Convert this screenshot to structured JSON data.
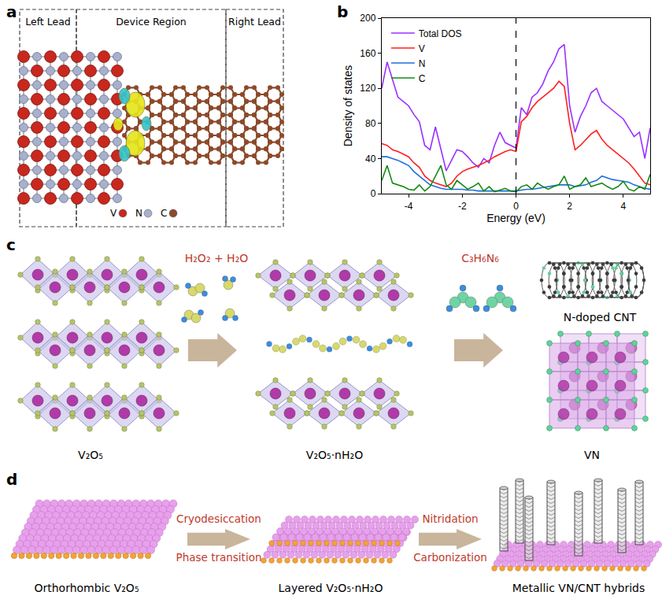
{
  "panel_a": {
    "label": "a",
    "regions": [
      "Left Lead",
      "Device Region",
      "Right Lead"
    ],
    "atoms": [
      {
        "name": "V",
        "color": "#c8281e"
      },
      {
        "name": "N",
        "color": "#a7b0cc"
      },
      {
        "name": "C",
        "color": "#8c4a2a"
      }
    ]
  },
  "chart_data": {
    "type": "line",
    "panel_label": "b",
    "xlabel": "Energy (eV)",
    "ylabel": "Density of states",
    "x": [
      -5.0,
      -4.8,
      -4.6,
      -4.4,
      -4.2,
      -4.0,
      -3.8,
      -3.6,
      -3.4,
      -3.2,
      -3.0,
      -2.8,
      -2.6,
      -2.4,
      -2.2,
      -2.0,
      -1.8,
      -1.6,
      -1.4,
      -1.2,
      -1.0,
      -0.8,
      -0.6,
      -0.4,
      -0.2,
      0.0,
      0.2,
      0.4,
      0.6,
      0.8,
      1.0,
      1.2,
      1.4,
      1.6,
      1.8,
      2.0,
      2.2,
      2.4,
      2.6,
      2.8,
      3.0,
      3.2,
      3.4,
      3.6,
      3.8,
      4.0,
      4.2,
      4.4,
      4.6,
      4.8,
      5.0
    ],
    "series": [
      {
        "name": "Total DOS",
        "color": "#9b30ff",
        "values": [
          120,
          150,
          130,
          110,
          105,
          100,
          90,
          82,
          55,
          50,
          76,
          52,
          26,
          38,
          50,
          48,
          42,
          35,
          30,
          40,
          35,
          55,
          70,
          58,
          55,
          52,
          98,
          90,
          110,
          115,
          125,
          140,
          150,
          165,
          170,
          100,
          70,
          88,
          100,
          115,
          120,
          105,
          100,
          95,
          90,
          85,
          75,
          65,
          70,
          40,
          75
        ]
      },
      {
        "name": "V",
        "color": "#ff1f1f",
        "values": [
          57,
          55,
          50,
          48,
          45,
          42,
          35,
          30,
          20,
          15,
          12,
          10,
          8,
          12,
          20,
          25,
          28,
          30,
          32,
          35,
          38,
          42,
          45,
          48,
          50,
          48,
          82,
          88,
          98,
          105,
          110,
          115,
          120,
          128,
          122,
          80,
          50,
          55,
          62,
          68,
          72,
          62,
          55,
          50,
          45,
          40,
          35,
          28,
          20,
          12,
          10
        ]
      },
      {
        "name": "N",
        "color": "#1e6fdc",
        "values": [
          42,
          42,
          40,
          38,
          35,
          32,
          25,
          20,
          15,
          10,
          8,
          6,
          5,
          5,
          5,
          5,
          4,
          4,
          3,
          3,
          3,
          3,
          3,
          3,
          3,
          3,
          4,
          5,
          5,
          6,
          7,
          8,
          9,
          10,
          10,
          10,
          8,
          9,
          10,
          13,
          15,
          20,
          18,
          16,
          15,
          14,
          13,
          10,
          8,
          6,
          5
        ]
      },
      {
        "name": "C",
        "color": "#138a13",
        "values": [
          15,
          32,
          12,
          10,
          8,
          5,
          4,
          10,
          3,
          8,
          20,
          32,
          10,
          5,
          15,
          10,
          5,
          8,
          12,
          3,
          8,
          2,
          4,
          6,
          3,
          2,
          8,
          10,
          5,
          12,
          8,
          5,
          8,
          10,
          20,
          5,
          8,
          10,
          18,
          8,
          10,
          12,
          8,
          5,
          8,
          14,
          5,
          3,
          8,
          5,
          22
        ]
      }
    ],
    "xlim": [
      -5,
      5
    ],
    "ylim": [
      0,
      200
    ],
    "xticks": [
      -4,
      -2,
      0,
      2,
      4
    ],
    "yticks": [
      0,
      40,
      80,
      120,
      160,
      200
    ],
    "grid": false,
    "legend": "upper left",
    "vline": {
      "x": 0,
      "line_style": "dashed"
    }
  },
  "panel_c": {
    "label": "c",
    "structures": [
      "V₂O₅",
      "V₂O₅·nH₂O",
      "N-doped CNT",
      "VN"
    ],
    "reagents": [
      "H₂O₂ + H₂O",
      "C₃H₆N₆"
    ]
  },
  "panel_d": {
    "label": "d",
    "stages": [
      "Orthorhombic V₂O₅",
      "Layered V₂O₅·nH₂O",
      "Metallic VN/CNT hybrids"
    ],
    "steps": [
      [
        "Cryodesiccation",
        "Phase transition"
      ],
      [
        "Nitridation",
        "Carbonization"
      ]
    ]
  }
}
